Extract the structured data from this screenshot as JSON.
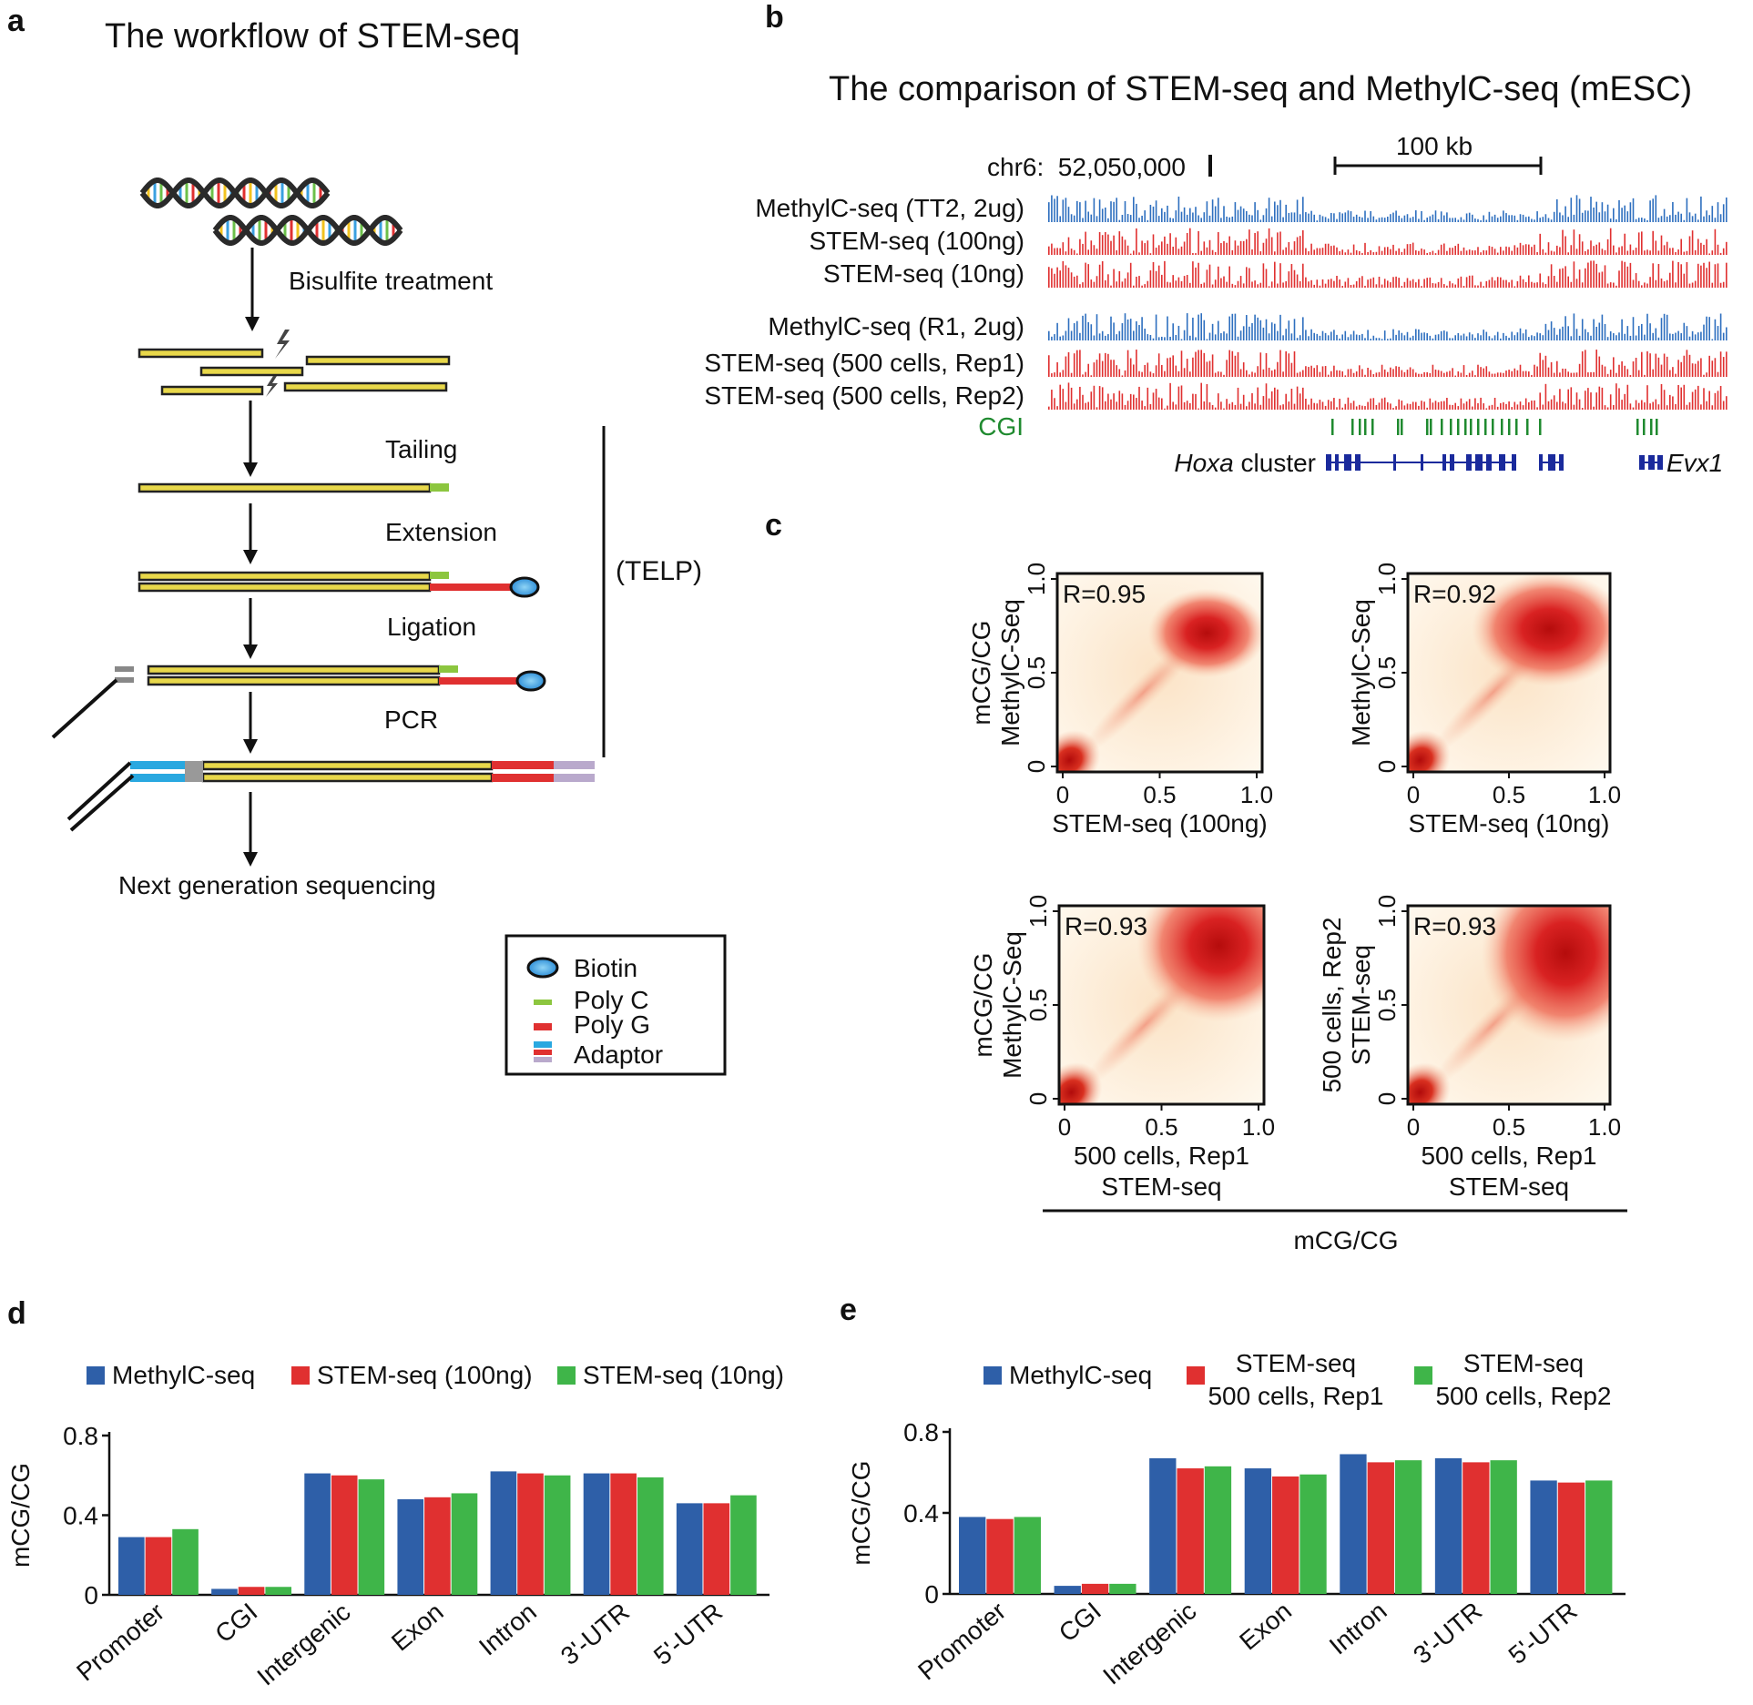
{
  "panel_labels": {
    "a": "a",
    "b": "b",
    "c": "c",
    "d": "d",
    "e": "e"
  },
  "panel_a": {
    "title": "The workflow of STEM-seq",
    "steps": [
      "Bisulfite treatment",
      "Tailing",
      "Extension",
      "Ligation",
      "PCR",
      "Next generation sequencing"
    ],
    "bracket_label": "(TELP)",
    "legend": [
      "Biotin",
      "Poly C",
      "Poly G",
      "Adaptor"
    ],
    "colors": {
      "dna": "#222222",
      "fill": "#e8d84a",
      "polyc": "#8cc63f",
      "polyg": "#e03030",
      "adaptor_blue": "#29a8e0",
      "adaptor_lilac": "#b9a9cc",
      "biotin": "#3aa0e0"
    }
  },
  "panel_b": {
    "title": "The comparison of STEM-seq and MethylC-seq (mESC)",
    "coord": "chr6:  52,050,000",
    "scale": "100 kb",
    "tracks": [
      {
        "label": "MethylC-seq (TT2, 2ug)",
        "color": "#2e6fbf"
      },
      {
        "label": "STEM-seq (100ng)",
        "color": "#e03030"
      },
      {
        "label": "STEM-seq (10ng)",
        "color": "#e03030"
      },
      {
        "label": "MethylC-seq (R1, 2ug)",
        "color": "#2e6fbf"
      },
      {
        "label": "STEM-seq (500 cells, Rep1)",
        "color": "#e03030"
      },
      {
        "label": "STEM-seq (500 cells, Rep2)",
        "color": "#e03030"
      }
    ],
    "cgi_label": "CGI",
    "cgi_color": "#1f8a2f",
    "gene_hoxa_italic": "Hoxa",
    "gene_hoxa_rest": " cluster",
    "gene_evx1": "Evx1",
    "gene_color": "#1a2a9c"
  },
  "panel_c": {
    "plots": [
      {
        "r": "R=0.95",
        "ylab1": "mCG/CG",
        "ylab2": "MethylC-Seq",
        "xlab1": "STEM-seq (100ng)",
        "xlab2": ""
      },
      {
        "r": "R=0.92",
        "ylab1": "",
        "ylab2": "MethylC-Seq",
        "xlab1": "STEM-seq (10ng)",
        "xlab2": ""
      },
      {
        "r": "R=0.93",
        "ylab1": "mCG/CG",
        "ylab2": "MethylC-Seq",
        "xlab1": "500 cells, Rep1",
        "xlab2": "STEM-seq"
      },
      {
        "r": "R=0.93",
        "ylab1": "500 cells, Rep2",
        "ylab2": "STEM-seq",
        "xlab1": "500 cells, Rep1",
        "xlab2": "STEM-seq"
      }
    ],
    "xticks": [
      "0",
      "0.5",
      "1.0"
    ],
    "yticks": [
      "0",
      "0.5",
      "1.0"
    ],
    "shared_xlabel": "mCG/CG"
  },
  "chart_data": [
    {
      "type": "bar",
      "panel": "d",
      "categories": [
        "Promoter",
        "CGI",
        "Intergenic",
        "Exon",
        "Intron",
        "3'-UTR",
        "5'-UTR"
      ],
      "series": [
        {
          "name": "MethylC-seq",
          "color": "#2e5fa8",
          "values": [
            0.29,
            0.03,
            0.61,
            0.48,
            0.62,
            0.61,
            0.46
          ]
        },
        {
          "name": "STEM-seq (100ng)",
          "color": "#e03030",
          "values": [
            0.29,
            0.04,
            0.6,
            0.49,
            0.61,
            0.61,
            0.46
          ]
        },
        {
          "name": "STEM-seq (10ng)",
          "color": "#3fb549",
          "values": [
            0.33,
            0.04,
            0.58,
            0.51,
            0.6,
            0.59,
            0.5
          ]
        }
      ],
      "legend": [
        "MethylC-seq",
        "STEM-seq (100ng)",
        "STEM-seq (10ng)"
      ],
      "ylabel": "mCG/CG",
      "yticks": [
        "0",
        "0.4",
        "0.8"
      ],
      "ylim": [
        0,
        0.8
      ]
    },
    {
      "type": "bar",
      "panel": "e",
      "categories": [
        "Promoter",
        "CGI",
        "Intergenic",
        "Exon",
        "Intron",
        "3'-UTR",
        "5'-UTR"
      ],
      "series": [
        {
          "name": "MethylC-seq",
          "color": "#2e5fa8",
          "values": [
            0.38,
            0.04,
            0.67,
            0.62,
            0.69,
            0.67,
            0.56
          ]
        },
        {
          "name": "STEM-seq 500 cells, Rep1",
          "color": "#e03030",
          "values": [
            0.37,
            0.05,
            0.62,
            0.58,
            0.65,
            0.65,
            0.55
          ]
        },
        {
          "name": "STEM-seq 500 cells, Rep2",
          "color": "#3fb549",
          "values": [
            0.38,
            0.05,
            0.63,
            0.59,
            0.66,
            0.66,
            0.56
          ]
        }
      ],
      "legend": [
        {
          "l1": "MethylC-seq",
          "l2": ""
        },
        {
          "l1": "STEM-seq",
          "l2": "500 cells, Rep1"
        },
        {
          "l1": "STEM-seq",
          "l2": "500 cells, Rep2"
        }
      ],
      "ylabel": "mCG/CG",
      "yticks": [
        "0",
        "0.4",
        "0.8"
      ],
      "ylim": [
        0,
        0.8
      ]
    }
  ]
}
